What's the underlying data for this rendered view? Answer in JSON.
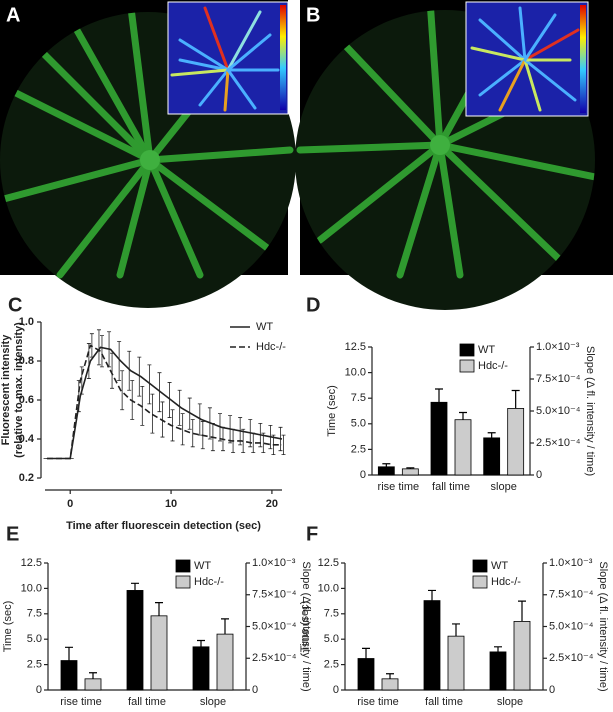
{
  "images": [
    {
      "panel": "A"
    },
    {
      "panel": "B"
    }
  ],
  "chart_data": [
    {
      "type": "line",
      "panel": "C",
      "ylabel": [
        "Fluorescent intensity",
        "(relative to max. intensity)"
      ],
      "xlabel": "Time after fluorescein detection (sec)",
      "xlim": [
        -2.5,
        21
      ],
      "xticks": [
        0,
        10,
        20
      ],
      "ylim": [
        0.2,
        1.0
      ],
      "yticks": [
        0.2,
        0.4,
        0.6,
        0.8,
        {
          "value": 1,
          "label": "1.0"
        }
      ],
      "x": [
        -2.3,
        0,
        1,
        2,
        3,
        4,
        5,
        6,
        7,
        8,
        9,
        10,
        11,
        12,
        13,
        14,
        15,
        16,
        17,
        18,
        19,
        20,
        21
      ],
      "series": [
        {
          "name": "WT",
          "color": "#222222",
          "dash": false,
          "values": [
            0.3,
            0.3,
            0.62,
            0.8,
            0.87,
            0.86,
            0.8,
            0.75,
            0.72,
            0.68,
            0.64,
            0.6,
            0.56,
            0.53,
            0.5,
            0.48,
            0.46,
            0.45,
            0.44,
            0.43,
            0.42,
            0.41,
            0.4
          ],
          "errors": [
            0,
            0,
            0.08,
            0.09,
            0.09,
            0.09,
            0.1,
            0.1,
            0.1,
            0.1,
            0.1,
            0.09,
            0.09,
            0.08,
            0.08,
            0.08,
            0.07,
            0.07,
            0.07,
            0.07,
            0.06,
            0.06,
            0.06
          ]
        },
        {
          "name": "Hdc-/-",
          "color": "#222222",
          "dash": true,
          "values": [
            0.3,
            0.3,
            0.7,
            0.88,
            0.85,
            0.75,
            0.65,
            0.6,
            0.57,
            0.53,
            0.5,
            0.47,
            0.45,
            0.43,
            0.42,
            0.41,
            0.4,
            0.39,
            0.39,
            0.38,
            0.38,
            0.37,
            0.37
          ],
          "errors": [
            0,
            0,
            0.07,
            0.06,
            0.08,
            0.09,
            0.1,
            0.1,
            0.1,
            0.1,
            0.09,
            0.08,
            0.08,
            0.07,
            0.07,
            0.07,
            0.06,
            0.06,
            0.06,
            0.05,
            0.05,
            0.05,
            0.05
          ]
        }
      ]
    },
    {
      "type": "bar",
      "panel": "D",
      "ylabel": "Time (sec)",
      "y2label": "Slope (Δ fl. intensity / time)",
      "categories": [
        "rise time",
        "fall time",
        "slope"
      ],
      "ylim": [
        0,
        12.5
      ],
      "yticks": [
        0,
        2.5,
        {
          "value": 5,
          "label": "5.0"
        },
        7.5,
        {
          "value": 10,
          "label": "10.0"
        },
        12.5
      ],
      "y2lim": [
        0,
        0.001
      ],
      "y2ticks": [
        0,
        {
          "value": 0.00025,
          "label": "2.5×10⁻⁴"
        },
        {
          "value": 0.0005,
          "label": "5.0×10⁻⁴"
        },
        {
          "value": 0.00075,
          "label": "7.5×10⁻⁴"
        },
        {
          "value": 0.001,
          "label": "1.0×10⁻³"
        }
      ],
      "series": [
        {
          "name": "WT",
          "color": "#000000",
          "values": [
            0.8,
            7.1,
            null
          ],
          "errors": [
            0.3,
            1.3,
            null
          ]
        },
        {
          "name": "Hdc-/-",
          "color": "#cccccc",
          "values": [
            0.6,
            5.4,
            null
          ],
          "errors": [
            0.1,
            0.7,
            null
          ]
        },
        {
          "color": "#000000",
          "axis": "y2",
          "values": [
            null,
            null,
            0.00029
          ],
          "errors": [
            null,
            null,
            4e-05
          ]
        },
        {
          "color": "#cccccc",
          "axis": "y2",
          "values": [
            null,
            null,
            0.00052
          ],
          "errors": [
            null,
            null,
            0.00014
          ]
        }
      ]
    },
    {
      "type": "bar",
      "panel": "E",
      "ylabel": "Time (sec)",
      "y2label": "Slope (Δ fl. intensity / time)",
      "categories": [
        "rise time",
        "fall time",
        "slope"
      ],
      "ylim": [
        0,
        12.5
      ],
      "yticks": [
        0,
        2.5,
        {
          "value": 5,
          "label": "5.0"
        },
        7.5,
        {
          "value": 10,
          "label": "10.0"
        },
        12.5
      ],
      "y2lim": [
        0,
        0.001
      ],
      "y2ticks": [
        0,
        {
          "value": 0.00025,
          "label": "2.5×10⁻⁴"
        },
        {
          "value": 0.0005,
          "label": "5.0×10⁻⁴"
        },
        {
          "value": 0.00075,
          "label": "7.5×10⁻⁴"
        },
        {
          "value": 0.001,
          "label": "1.0×10⁻³"
        }
      ],
      "series": [
        {
          "name": "WT",
          "color": "#000000",
          "values": [
            2.9,
            9.8,
            null
          ],
          "errors": [
            1.3,
            0.7,
            null
          ]
        },
        {
          "name": "Hdc-/-",
          "color": "#cccccc",
          "values": [
            1.1,
            7.3,
            null
          ],
          "errors": [
            0.6,
            1.3,
            null
          ]
        },
        {
          "color": "#000000",
          "axis": "y2",
          "values": [
            null,
            null,
            0.00034
          ],
          "errors": [
            null,
            null,
            5e-05
          ]
        },
        {
          "color": "#cccccc",
          "axis": "y2",
          "values": [
            null,
            null,
            0.00044
          ],
          "errors": [
            null,
            null,
            0.00012
          ]
        }
      ]
    },
    {
      "type": "bar",
      "panel": "F",
      "ylabel": "Time (sec)",
      "y2label": "Slope (Δ fl. intensity / time)",
      "categories": [
        "rise time",
        "fall time",
        "slope"
      ],
      "ylim": [
        0,
        12.5
      ],
      "yticks": [
        0,
        2.5,
        {
          "value": 5,
          "label": "5.0"
        },
        7.5,
        {
          "value": 10,
          "label": "10.0"
        },
        12.5
      ],
      "y2lim": [
        0,
        0.001
      ],
      "y2ticks": [
        0,
        {
          "value": 0.00025,
          "label": "2.5×10⁻⁴"
        },
        {
          "value": 0.0005,
          "label": "5.0×10⁻⁴"
        },
        {
          "value": 0.00075,
          "label": "7.5×10⁻⁴"
        },
        {
          "value": 0.001,
          "label": "1.0×10⁻³"
        }
      ],
      "series": [
        {
          "name": "WT",
          "color": "#000000",
          "values": [
            3.1,
            8.8,
            null
          ],
          "errors": [
            1.0,
            1.0,
            null
          ]
        },
        {
          "name": "Hdc-/-",
          "color": "#cccccc",
          "values": [
            1.1,
            5.3,
            null
          ],
          "errors": [
            0.5,
            1.2,
            null
          ]
        },
        {
          "color": "#000000",
          "axis": "y2",
          "values": [
            null,
            null,
            0.0003
          ],
          "errors": [
            null,
            null,
            4e-05
          ]
        },
        {
          "color": "#cccccc",
          "axis": "y2",
          "values": [
            null,
            null,
            0.00054
          ],
          "errors": [
            null,
            null,
            0.00016
          ]
        }
      ]
    }
  ]
}
